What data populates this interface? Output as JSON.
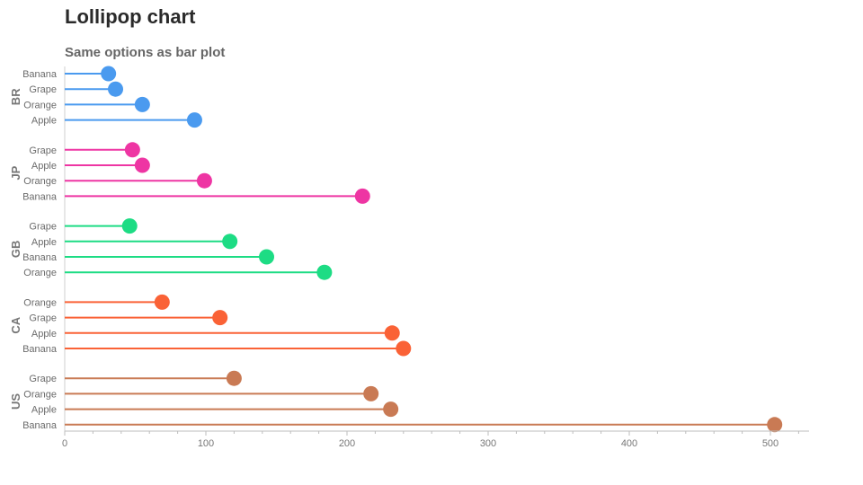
{
  "title": "Lollipop chart",
  "subtitle": "Same options as bar plot",
  "chart_data": {
    "type": "lollipop",
    "title": "Lollipop chart",
    "subtitle": "Same options as bar plot",
    "xlim": [
      0,
      528
    ],
    "x_ticks": [
      0,
      100,
      200,
      300,
      400,
      500
    ],
    "grid": false,
    "orientation": "horizontal",
    "groups": [
      {
        "name": "BR",
        "color": "#4a9aef",
        "items": [
          {
            "category": "Banana",
            "value": 31
          },
          {
            "category": "Grape",
            "value": 36
          },
          {
            "category": "Orange",
            "value": 55
          },
          {
            "category": "Apple",
            "value": 92
          }
        ]
      },
      {
        "name": "JP",
        "color": "#ee35a3",
        "items": [
          {
            "category": "Grape",
            "value": 48
          },
          {
            "category": "Apple",
            "value": 55
          },
          {
            "category": "Orange",
            "value": 99
          },
          {
            "category": "Banana",
            "value": 211
          }
        ]
      },
      {
        "name": "GB",
        "color": "#1ddc84",
        "items": [
          {
            "category": "Grape",
            "value": 46
          },
          {
            "category": "Apple",
            "value": 117
          },
          {
            "category": "Banana",
            "value": 143
          },
          {
            "category": "Orange",
            "value": 184
          }
        ]
      },
      {
        "name": "CA",
        "color": "#fa6236",
        "items": [
          {
            "category": "Orange",
            "value": 69
          },
          {
            "category": "Grape",
            "value": 110
          },
          {
            "category": "Apple",
            "value": 232
          },
          {
            "category": "Banana",
            "value": 240
          }
        ]
      },
      {
        "name": "US",
        "color": "#c97a54",
        "items": [
          {
            "category": "Grape",
            "value": 120
          },
          {
            "category": "Orange",
            "value": 217
          },
          {
            "category": "Apple",
            "value": 231
          },
          {
            "category": "Banana",
            "value": 503
          }
        ]
      }
    ]
  }
}
